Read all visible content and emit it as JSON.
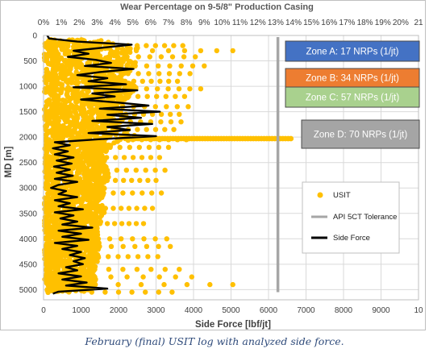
{
  "chart_data": {
    "type": "scatter",
    "title": "Wear Percentage on 9-5/8\" Production Casing",
    "xlabel": "Side Force [lbf/jt]",
    "ylabel": "MD [m]",
    "x_ticks": [
      "0",
      "1000",
      "2000",
      "3000",
      "4000",
      "5000",
      "6000",
      "7000",
      "8000",
      "9000",
      "10"
    ],
    "x2_ticks": [
      "0%",
      "1%",
      "2%",
      "3%",
      "4%",
      "5%",
      "6%",
      "7%",
      "8%",
      "9%",
      "10%",
      "11%",
      "12%",
      "13%",
      "14%",
      "15%",
      "16%",
      "17%",
      "18%",
      "19%",
      "20%",
      "21"
    ],
    "y_ticks": [
      "0",
      "500",
      "1000",
      "1500",
      "2000",
      "2500",
      "3000",
      "3500",
      "4000",
      "4500",
      "5000"
    ],
    "xlim": [
      0,
      10000
    ],
    "x2lim": [
      0,
      21
    ],
    "ylim": [
      0,
      5200
    ],
    "y_inverted": true,
    "grid": true,
    "api_tolerance_x": 6250,
    "series": [
      {
        "name": "USIT",
        "color": "#ffc000",
        "axis": "wear_percent",
        "envelope": [
          {
            "md": 100,
            "wear": 3.2
          },
          {
            "md": 250,
            "wear": 5.5
          },
          {
            "md": 400,
            "wear": 4.6
          },
          {
            "md": 550,
            "wear": 5.2
          },
          {
            "md": 700,
            "wear": 5.0
          },
          {
            "md": 850,
            "wear": 4.2
          },
          {
            "md": 1000,
            "wear": 5.3
          },
          {
            "md": 1150,
            "wear": 4.9
          },
          {
            "md": 1300,
            "wear": 4.5
          },
          {
            "md": 1450,
            "wear": 4.4
          },
          {
            "md": 1600,
            "wear": 4.7
          },
          {
            "md": 1750,
            "wear": 4.1
          },
          {
            "md": 1900,
            "wear": 4.3
          },
          {
            "md": 2000,
            "wear": 5.6
          },
          {
            "md": 2150,
            "wear": 3.8
          },
          {
            "md": 2300,
            "wear": 3.6
          },
          {
            "md": 2450,
            "wear": 3.5
          },
          {
            "md": 2600,
            "wear": 3.5
          },
          {
            "md": 2750,
            "wear": 3.7
          },
          {
            "md": 2900,
            "wear": 3.5
          },
          {
            "md": 3050,
            "wear": 3.4
          },
          {
            "md": 3200,
            "wear": 3.3
          },
          {
            "md": 3350,
            "wear": 3.5
          },
          {
            "md": 3500,
            "wear": 3.4
          },
          {
            "md": 3650,
            "wear": 3.2
          },
          {
            "md": 3800,
            "wear": 3.1
          },
          {
            "md": 3950,
            "wear": 3.0
          },
          {
            "md": 4100,
            "wear": 3.2
          },
          {
            "md": 4250,
            "wear": 3.0
          },
          {
            "md": 4400,
            "wear": 3.1
          },
          {
            "md": 4550,
            "wear": 2.9
          },
          {
            "md": 4700,
            "wear": 2.8
          },
          {
            "md": 4850,
            "wear": 3.0
          },
          {
            "md": 5000,
            "wear": 2.7
          }
        ],
        "outliers": [
          {
            "md": 200,
            "wear": 7.8
          },
          {
            "md": 300,
            "wear": 10.6
          },
          {
            "md": 420,
            "wear": 8.5
          },
          {
            "md": 600,
            "wear": 9.0
          },
          {
            "md": 750,
            "wear": 8.2
          },
          {
            "md": 900,
            "wear": 7.5
          },
          {
            "md": 1050,
            "wear": 8.8
          },
          {
            "md": 1200,
            "wear": 7.9
          },
          {
            "md": 1400,
            "wear": 8.1
          },
          {
            "md": 1550,
            "wear": 7.6
          },
          {
            "md": 1700,
            "wear": 7.7
          },
          {
            "md": 1850,
            "wear": 7.3
          },
          {
            "md": 2050,
            "wear": 8.0
          },
          {
            "md": 2200,
            "wear": 7.0
          },
          {
            "md": 2400,
            "wear": 6.5
          },
          {
            "md": 2650,
            "wear": 6.8
          },
          {
            "md": 2850,
            "wear": 6.3
          },
          {
            "md": 3100,
            "wear": 6.6
          },
          {
            "md": 3400,
            "wear": 6.1
          },
          {
            "md": 3700,
            "wear": 5.6
          },
          {
            "md": 4000,
            "wear": 6.9
          },
          {
            "md": 4150,
            "wear": 7.1
          },
          {
            "md": 4350,
            "wear": 6.4
          },
          {
            "md": 4600,
            "wear": 7.6
          },
          {
            "md": 4750,
            "wear": 8.3
          },
          {
            "md": 4900,
            "wear": 10.6
          },
          {
            "md": 5050,
            "wear": 7.2
          }
        ],
        "spike": {
          "md": 2030,
          "wear_start": 5.0,
          "wear_end": 13.9
        }
      },
      {
        "name": "API 5CT Tolerance",
        "color": "#a6a6a6",
        "axis": "side_force"
      },
      {
        "name": "Side Force",
        "color": "#000000",
        "axis": "side_force",
        "points": [
          {
            "md": 0,
            "x": 100
          },
          {
            "md": 60,
            "x": 150
          },
          {
            "md": 120,
            "x": 900
          },
          {
            "md": 180,
            "x": 2350
          },
          {
            "md": 240,
            "x": 1600
          },
          {
            "md": 300,
            "x": 800
          },
          {
            "md": 360,
            "x": 1200
          },
          {
            "md": 420,
            "x": 650
          },
          {
            "md": 480,
            "x": 1400
          },
          {
            "md": 540,
            "x": 1800
          },
          {
            "md": 600,
            "x": 1100
          },
          {
            "md": 660,
            "x": 2400
          },
          {
            "md": 720,
            "x": 1500
          },
          {
            "md": 780,
            "x": 900
          },
          {
            "md": 840,
            "x": 1700
          },
          {
            "md": 900,
            "x": 1200
          },
          {
            "md": 960,
            "x": 2200
          },
          {
            "md": 1020,
            "x": 800
          },
          {
            "md": 1080,
            "x": 2500
          },
          {
            "md": 1140,
            "x": 1300
          },
          {
            "md": 1200,
            "x": 1900
          },
          {
            "md": 1260,
            "x": 1000
          },
          {
            "md": 1320,
            "x": 2000
          },
          {
            "md": 1380,
            "x": 2800
          },
          {
            "md": 1440,
            "x": 1500
          },
          {
            "md": 1500,
            "x": 3100
          },
          {
            "md": 1560,
            "x": 1700
          },
          {
            "md": 1620,
            "x": 2600
          },
          {
            "md": 1680,
            "x": 1300
          },
          {
            "md": 1740,
            "x": 2900
          },
          {
            "md": 1800,
            "x": 1700
          },
          {
            "md": 1860,
            "x": 2300
          },
          {
            "md": 1920,
            "x": 1200
          },
          {
            "md": 1980,
            "x": 3000
          },
          {
            "md": 2040,
            "x": 1500
          },
          {
            "md": 2100,
            "x": 300
          },
          {
            "md": 2160,
            "x": 700
          },
          {
            "md": 2220,
            "x": 250
          },
          {
            "md": 2280,
            "x": 650
          },
          {
            "md": 2340,
            "x": 300
          },
          {
            "md": 2400,
            "x": 800
          },
          {
            "md": 2460,
            "x": 350
          },
          {
            "md": 2520,
            "x": 750
          },
          {
            "md": 2580,
            "x": 280
          },
          {
            "md": 2640,
            "x": 700
          },
          {
            "md": 2700,
            "x": 350
          },
          {
            "md": 2760,
            "x": 780
          },
          {
            "md": 2820,
            "x": 300
          },
          {
            "md": 2880,
            "x": 900
          },
          {
            "md": 2940,
            "x": 400
          },
          {
            "md": 3000,
            "x": 200
          },
          {
            "md": 3060,
            "x": 600
          },
          {
            "md": 3120,
            "x": 400
          },
          {
            "md": 3180,
            "x": 900
          },
          {
            "md": 3240,
            "x": 300
          },
          {
            "md": 3300,
            "x": 700
          },
          {
            "md": 3360,
            "x": 400
          },
          {
            "md": 3420,
            "x": 1050
          },
          {
            "md": 3480,
            "x": 300
          },
          {
            "md": 3540,
            "x": 800
          },
          {
            "md": 3600,
            "x": 450
          },
          {
            "md": 3660,
            "x": 900
          },
          {
            "md": 3720,
            "x": 500
          },
          {
            "md": 3780,
            "x": 1300
          },
          {
            "md": 3840,
            "x": 400
          },
          {
            "md": 3900,
            "x": 1000
          },
          {
            "md": 3960,
            "x": 500
          },
          {
            "md": 4020,
            "x": 1200
          },
          {
            "md": 4080,
            "x": 300
          },
          {
            "md": 4140,
            "x": 900
          },
          {
            "md": 4200,
            "x": 500
          },
          {
            "md": 4260,
            "x": 1000
          },
          {
            "md": 4320,
            "x": 700
          },
          {
            "md": 4380,
            "x": 1100
          },
          {
            "md": 4440,
            "x": 800
          },
          {
            "md": 4500,
            "x": 1050
          },
          {
            "md": 4560,
            "x": 600
          },
          {
            "md": 4620,
            "x": 900
          },
          {
            "md": 4680,
            "x": 400
          },
          {
            "md": 4740,
            "x": 1000
          },
          {
            "md": 4800,
            "x": 500
          },
          {
            "md": 4860,
            "x": 1150
          },
          {
            "md": 4920,
            "x": 600
          },
          {
            "md": 4980,
            "x": 1700
          },
          {
            "md": 5040,
            "x": 400
          },
          {
            "md": 5080,
            "x": 250
          }
        ]
      }
    ],
    "zones": [
      {
        "label": "Zone A: 17 NRPs (1/jt)",
        "color": "#4472c4"
      },
      {
        "label": "Zone B: 34 NRPs (1/jt)",
        "color": "#ed7d31"
      },
      {
        "label": "Zone C: 57 NRPs (1/jt)",
        "color": "#a9d18e"
      },
      {
        "label": "Zone D: 70 NRPs (1/jt)",
        "color": "#a5a5a5"
      }
    ],
    "legend": {
      "placement": "right"
    }
  },
  "caption": "February (final) USIT log with analyzed side force."
}
